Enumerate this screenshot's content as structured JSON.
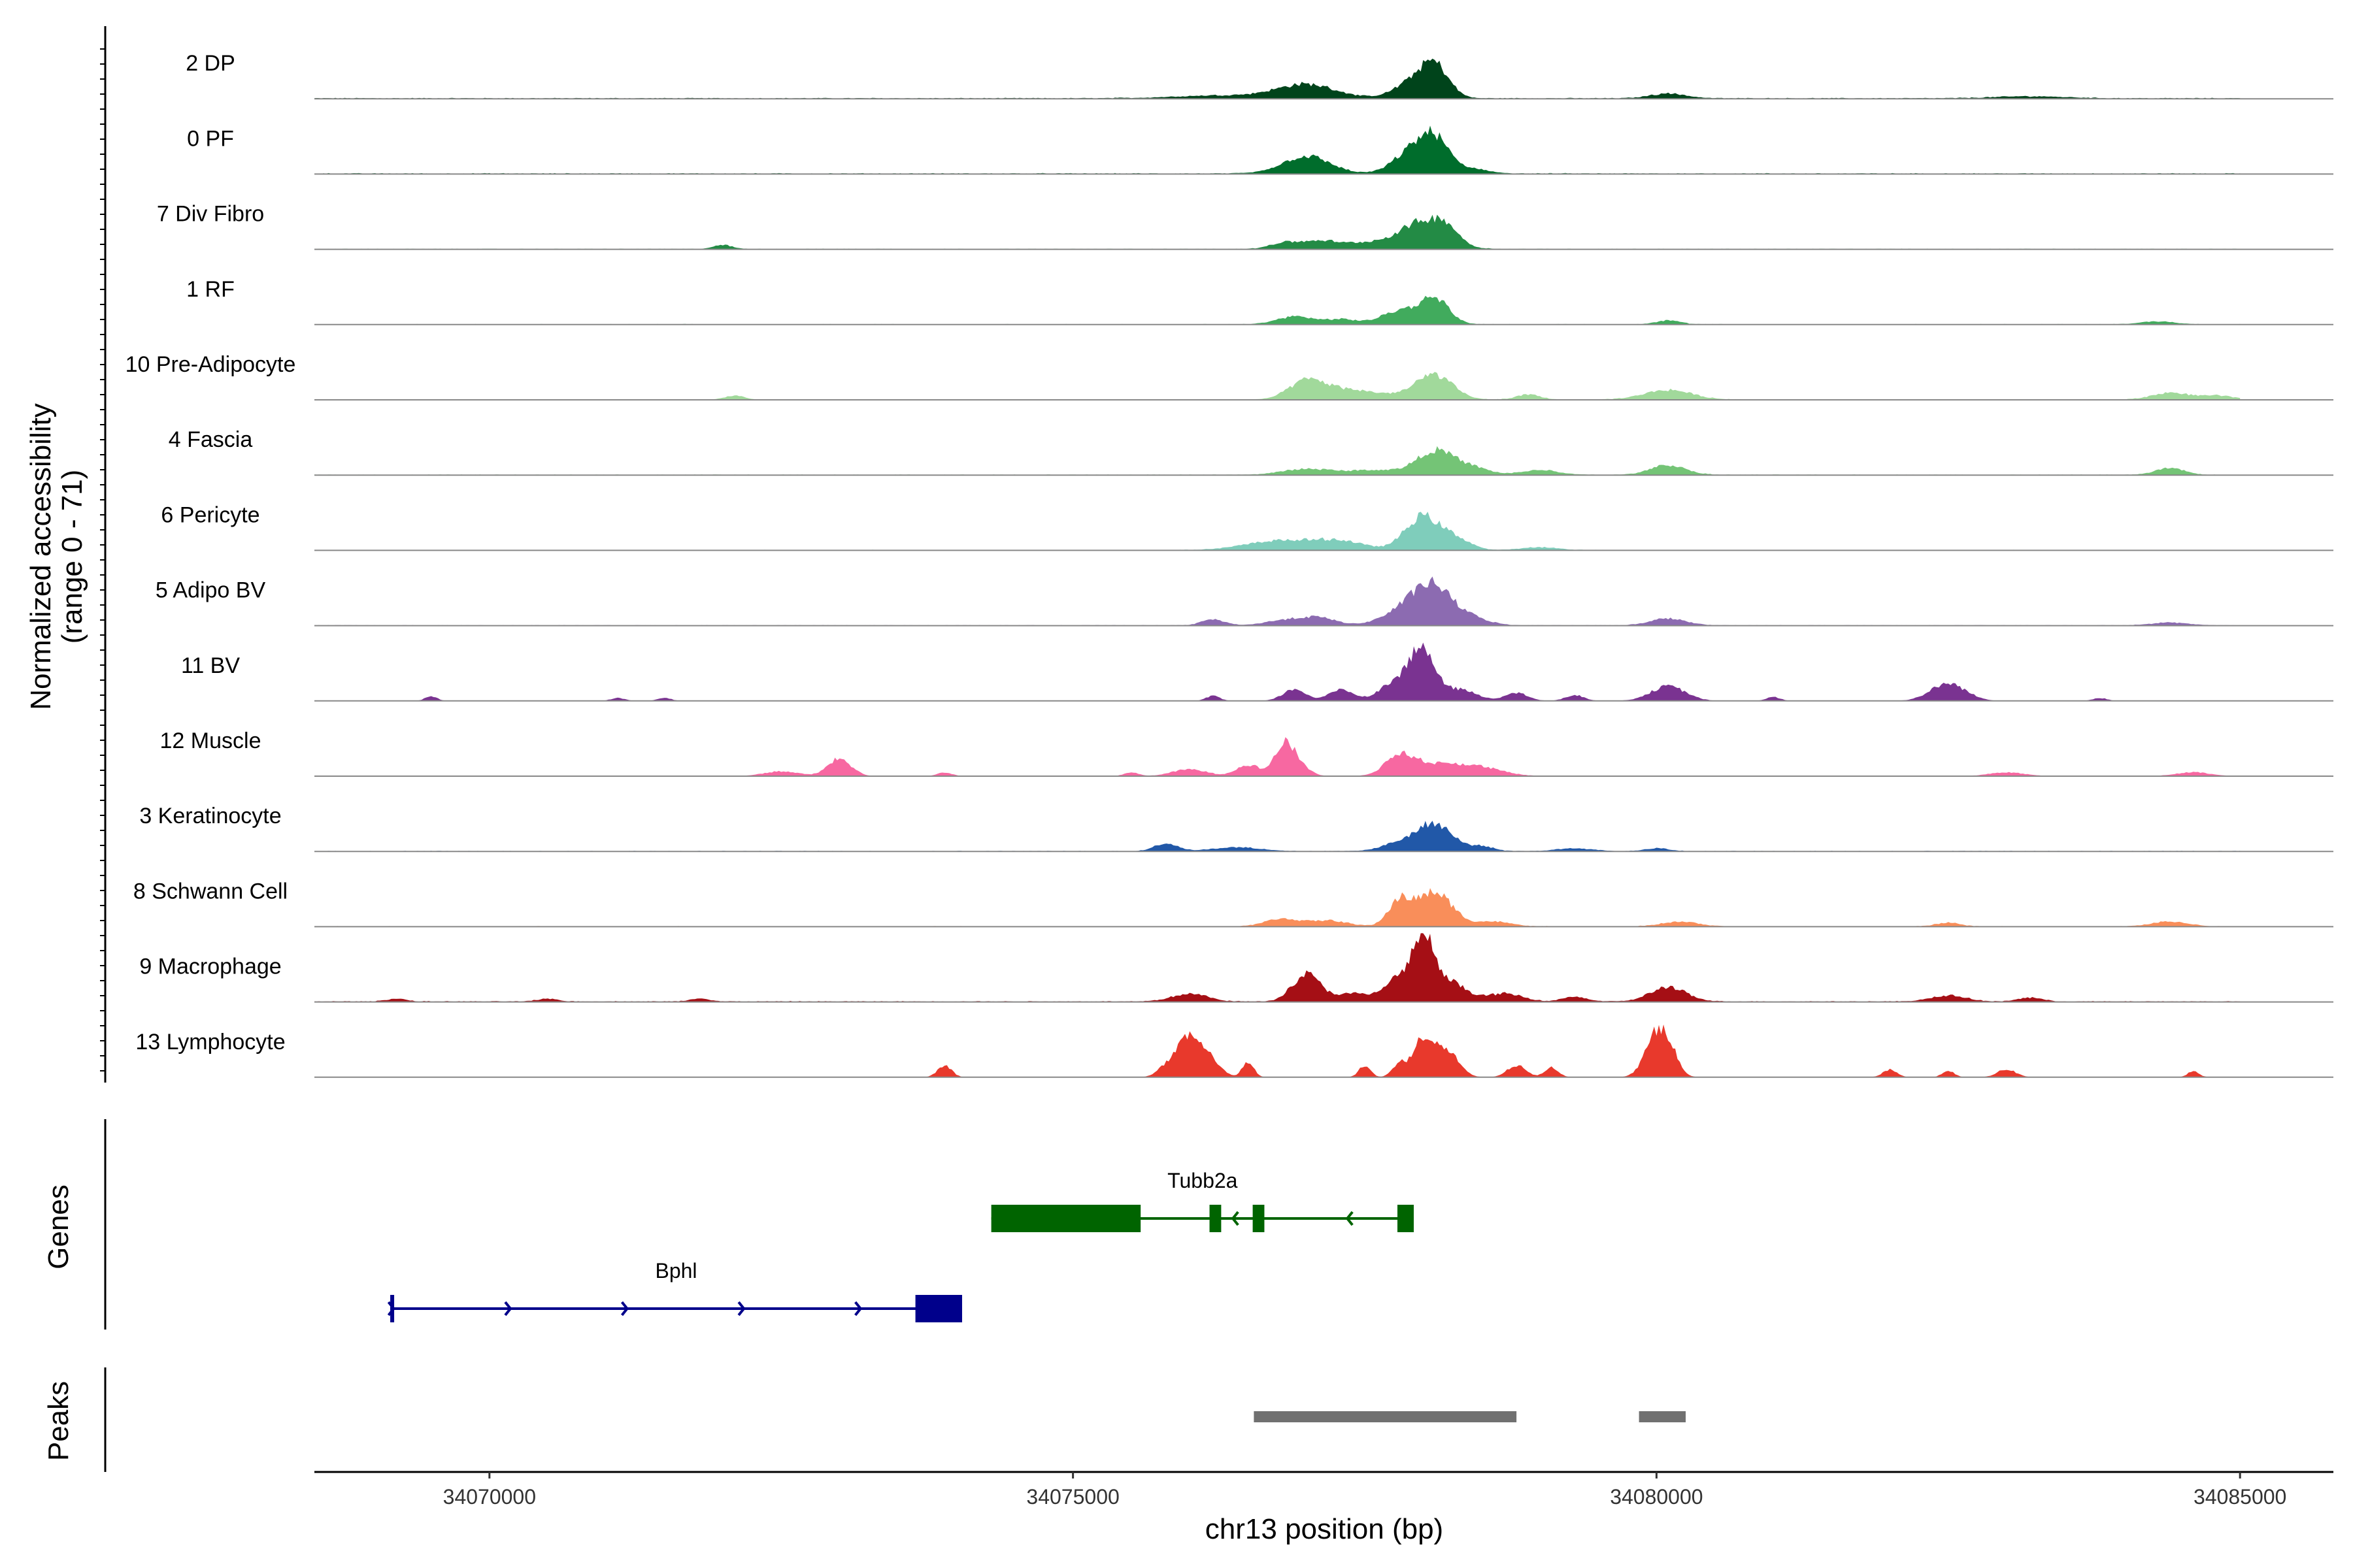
{
  "chart_data": {
    "type": "area",
    "region": {
      "chromosome": "chr13",
      "start": 34068500,
      "end": 34085800
    },
    "ylabel_line1": "Normalized accessibility",
    "ylabel_line2": "(range 0 - 71)",
    "ylim": [
      0,
      71
    ],
    "xlabel": "chr13 position (bp)",
    "xticks": [
      34070000,
      34075000,
      34080000,
      34085000
    ],
    "xtick_labels": [
      "34070000",
      "34075000",
      "34080000",
      "34085000"
    ],
    "genes_label": "Genes",
    "peaks_label": "Peaks",
    "series": [
      {
        "name": "2 DP",
        "color": "#00441b",
        "baseline": 0.8,
        "start": 34068500,
        "end": 34085000,
        "peaks": [
          [
            34077000,
            250,
            14
          ],
          [
            34077900,
            150,
            15
          ],
          [
            34078100,
            120,
            32
          ],
          [
            34076300,
            400,
            3
          ],
          [
            34080100,
            150,
            5
          ],
          [
            34083200,
            300,
            2
          ]
        ]
      },
      {
        "name": "0 PF",
        "color": "#006d2c",
        "baseline": 0.8,
        "start": 34068500,
        "end": 34085000,
        "peaks": [
          [
            34077000,
            200,
            18
          ],
          [
            34077900,
            150,
            22
          ],
          [
            34078100,
            120,
            32
          ],
          [
            34078400,
            150,
            5
          ]
        ]
      },
      {
        "name": "7 Div Fibro",
        "color": "#238b45",
        "baseline": 0.5,
        "start": 34068500,
        "end": 34085000,
        "peaks": [
          [
            34076800,
            120,
            6
          ],
          [
            34077100,
            150,
            8
          ],
          [
            34077500,
            200,
            6
          ],
          [
            34078000,
            200,
            28
          ],
          [
            34078200,
            100,
            12
          ],
          [
            34072000,
            80,
            4
          ]
        ]
      },
      {
        "name": "1 RF",
        "color": "#41ab5d",
        "baseline": 0.5,
        "start": 34068500,
        "end": 34085000,
        "peaks": [
          [
            34076900,
            150,
            8
          ],
          [
            34077300,
            150,
            5
          ],
          [
            34077800,
            150,
            14
          ],
          [
            34078100,
            120,
            27
          ],
          [
            34080100,
            100,
            4
          ],
          [
            34084300,
            150,
            3
          ]
        ]
      },
      {
        "name": "10 Pre-Adipocyte",
        "color": "#a1d99b",
        "baseline": 0.5,
        "start": 34068500,
        "end": 34085000,
        "peaks": [
          [
            34077000,
            150,
            18
          ],
          [
            34077300,
            200,
            8
          ],
          [
            34077700,
            300,
            5
          ],
          [
            34078100,
            150,
            24
          ],
          [
            34078900,
            100,
            5
          ],
          [
            34080100,
            200,
            10
          ],
          [
            34072100,
            80,
            4
          ],
          [
            34084400,
            150,
            7
          ],
          [
            34084800,
            150,
            4
          ]
        ]
      },
      {
        "name": "4 Fascia",
        "color": "#74c476",
        "baseline": 0.5,
        "start": 34068500,
        "end": 34085000,
        "peaks": [
          [
            34077000,
            200,
            6
          ],
          [
            34077600,
            250,
            5
          ],
          [
            34078100,
            150,
            24
          ],
          [
            34078400,
            150,
            8
          ],
          [
            34079000,
            150,
            5
          ],
          [
            34080100,
            150,
            10
          ],
          [
            34084400,
            120,
            7
          ]
        ]
      },
      {
        "name": "6 Pericyte",
        "color": "#7fcdbb",
        "baseline": 0.5,
        "start": 34068500,
        "end": 34085000,
        "peaks": [
          [
            34076800,
            300,
            10
          ],
          [
            34077300,
            200,
            8
          ],
          [
            34078000,
            150,
            35
          ],
          [
            34078300,
            120,
            10
          ],
          [
            34079000,
            150,
            3
          ]
        ]
      },
      {
        "name": "5 Adipo BV",
        "color": "#8c6bb1",
        "baseline": 0.5,
        "start": 34068500,
        "end": 34085000,
        "peaks": [
          [
            34076200,
            100,
            6
          ],
          [
            34076800,
            150,
            5
          ],
          [
            34077100,
            150,
            8
          ],
          [
            34077900,
            200,
            20
          ],
          [
            34078100,
            150,
            30
          ],
          [
            34078400,
            150,
            8
          ],
          [
            34080100,
            150,
            7
          ],
          [
            34084400,
            150,
            3
          ]
        ]
      },
      {
        "name": "11 BV",
        "color": "#7a3391",
        "baseline": 0,
        "start": 34068500,
        "end": 34085000,
        "peaks": [
          [
            34069500,
            50,
            5
          ],
          [
            34071100,
            60,
            3
          ],
          [
            34071500,
            60,
            3
          ],
          [
            34076200,
            60,
            5
          ],
          [
            34076900,
            100,
            12
          ],
          [
            34077300,
            100,
            12
          ],
          [
            34077800,
            150,
            22
          ],
          [
            34078000,
            100,
            45
          ],
          [
            34078300,
            150,
            12
          ],
          [
            34078800,
            100,
            8
          ],
          [
            34079300,
            80,
            6
          ],
          [
            34080100,
            150,
            15
          ],
          [
            34081000,
            60,
            4
          ],
          [
            34082500,
            150,
            18
          ],
          [
            34083800,
            60,
            3
          ]
        ]
      },
      {
        "name": "12 Muscle",
        "color": "#f768a1",
        "baseline": 0,
        "start": 34068500,
        "end": 34085000,
        "peaks": [
          [
            34072500,
            150,
            5
          ],
          [
            34073000,
            100,
            18
          ],
          [
            34073900,
            60,
            4
          ],
          [
            34075500,
            60,
            4
          ],
          [
            34076000,
            150,
            7
          ],
          [
            34076500,
            100,
            12
          ],
          [
            34076800,
            80,
            25
          ],
          [
            34076900,
            100,
            15
          ],
          [
            34077800,
            120,
            18
          ],
          [
            34078100,
            250,
            12
          ],
          [
            34078500,
            200,
            7
          ],
          [
            34083000,
            150,
            4
          ],
          [
            34084600,
            150,
            4
          ]
        ]
      },
      {
        "name": "3 Keratinocyte",
        "color": "#2158a8",
        "baseline": 0.5,
        "start": 34068500,
        "end": 34085000,
        "peaks": [
          [
            34075800,
            100,
            8
          ],
          [
            34076400,
            200,
            4
          ],
          [
            34077800,
            150,
            8
          ],
          [
            34078100,
            150,
            28
          ],
          [
            34078500,
            100,
            5
          ],
          [
            34079300,
            150,
            3
          ],
          [
            34080000,
            100,
            3
          ]
        ]
      },
      {
        "name": "8 Schwann Cell",
        "color": "#f98e5a",
        "baseline": 0.5,
        "start": 34068500,
        "end": 34085000,
        "peaks": [
          [
            34076800,
            150,
            8
          ],
          [
            34077200,
            150,
            6
          ],
          [
            34077800,
            100,
            25
          ],
          [
            34078100,
            150,
            35
          ],
          [
            34078600,
            150,
            5
          ],
          [
            34080200,
            150,
            5
          ],
          [
            34082500,
            100,
            4
          ],
          [
            34084400,
            150,
            5
          ]
        ]
      },
      {
        "name": "9 Macrophage",
        "color": "#a50f15",
        "baseline": 0.8,
        "start": 34068500,
        "end": 34085000,
        "peaks": [
          [
            34069200,
            80,
            3
          ],
          [
            34070500,
            80,
            3
          ],
          [
            34071800,
            80,
            3
          ],
          [
            34076000,
            150,
            8
          ],
          [
            34077000,
            120,
            28
          ],
          [
            34077400,
            150,
            8
          ],
          [
            34077800,
            120,
            25
          ],
          [
            34078000,
            80,
            60
          ],
          [
            34078200,
            150,
            22
          ],
          [
            34078700,
            150,
            8
          ],
          [
            34079300,
            100,
            5
          ],
          [
            34080100,
            150,
            15
          ],
          [
            34082500,
            150,
            6
          ],
          [
            34083200,
            100,
            4
          ]
        ]
      },
      {
        "name": "13 Lymphocyte",
        "color": "#e8392c",
        "baseline": 0,
        "start": 34068500,
        "end": 34085000,
        "peaks": [
          [
            34073900,
            60,
            12
          ],
          [
            34075800,
            80,
            10
          ],
          [
            34076000,
            100,
            42
          ],
          [
            34076200,
            80,
            15
          ],
          [
            34076500,
            50,
            15
          ],
          [
            34077500,
            50,
            12
          ],
          [
            34077800,
            60,
            15
          ],
          [
            34078000,
            80,
            40
          ],
          [
            34078200,
            100,
            28
          ],
          [
            34078800,
            80,
            12
          ],
          [
            34079100,
            60,
            10
          ],
          [
            34080000,
            100,
            40
          ],
          [
            34080100,
            80,
            20
          ],
          [
            34082000,
            60,
            8
          ],
          [
            34082500,
            50,
            7
          ],
          [
            34083000,
            80,
            8
          ],
          [
            34084600,
            50,
            6
          ]
        ]
      }
    ],
    "genes": [
      {
        "name": "Tubb2a",
        "strand": "-",
        "color": "#006400",
        "row": 0,
        "exons": [
          [
            34074300,
            34075520
          ],
          [
            34075480,
            34075580
          ],
          [
            34076170,
            34076270
          ],
          [
            34076540,
            34076640
          ],
          [
            34077780,
            34077920
          ]
        ],
        "arrows": [
          34076370,
          34077350
        ]
      },
      {
        "name": "Bphl",
        "strand": "+",
        "color": "#00008b",
        "row": 1,
        "exons": [
          [
            34069150,
            34069180
          ],
          [
            34073650,
            34074050
          ]
        ],
        "arrows": [
          34069180,
          34070180,
          34071180,
          34072180,
          34073180
        ]
      }
    ],
    "peaks": [
      {
        "start": 34076550,
        "end": 34078800,
        "color": "#707070"
      },
      {
        "start": 34079850,
        "end": 34080250,
        "color": "#707070"
      }
    ]
  }
}
